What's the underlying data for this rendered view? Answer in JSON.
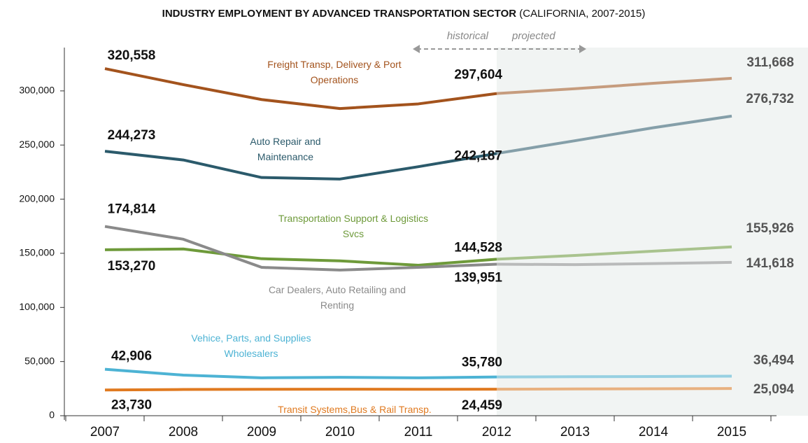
{
  "chart_data": {
    "type": "line",
    "title": "INDUSTRY EMPLOYMENT BY ADVANCED TRANSPORTATION SECTOR",
    "subtitle": "(CALIFORNIA, 2007-2015)",
    "annotations": [
      "historical",
      "projected"
    ],
    "projection_start": "2012",
    "categories": [
      "2007",
      "2008",
      "2009",
      "2010",
      "2011",
      "2012",
      "2013",
      "2014",
      "2015"
    ],
    "ylim": [
      0,
      340000
    ],
    "yticks": [
      0,
      {
        "value": 50000,
        "label": "50,000"
      },
      {
        "value": 100000,
        "label": "100,000"
      },
      {
        "value": 150000,
        "label": "150,000"
      },
      {
        "value": 200000,
        "label": "200,000"
      },
      {
        "value": 250000,
        "label": "250,000"
      },
      {
        "value": 300000,
        "label": "300,000"
      }
    ],
    "series": [
      {
        "name": "Freight Transp, Delivery & Port Operations",
        "color": "#a3531d",
        "values": [
          320558,
          305800,
          292000,
          283700,
          288000,
          297604,
          302000,
          307000,
          311668
        ],
        "value_labels": [
          "320,558",
          null,
          null,
          null,
          null,
          "297,604",
          null,
          null,
          "311,668"
        ]
      },
      {
        "name": "Auto Repair and Maintenance",
        "color": "#2b5a6b",
        "values": [
          244273,
          236200,
          220000,
          218600,
          230000,
          242187,
          254000,
          266000,
          276732
        ],
        "value_labels": [
          "244,273",
          null,
          null,
          null,
          null,
          "242,187",
          null,
          null,
          "276,732"
        ]
      },
      {
        "name": "Transportation Support & Logistics Svcs",
        "color": "#6e9a3a",
        "values": [
          153270,
          154000,
          145000,
          143000,
          139000,
          144528,
          148000,
          152000,
          155926
        ],
        "value_labels": [
          "153,270",
          null,
          null,
          null,
          null,
          "144,528",
          null,
          null,
          "155,926"
        ]
      },
      {
        "name": "Car Dealers, Auto Retailing and Renting",
        "color": "#8a8a8a",
        "values": [
          174814,
          163000,
          137000,
          134500,
          137000,
          139951,
          139500,
          140500,
          141618
        ],
        "value_labels": [
          "174,814",
          null,
          null,
          null,
          null,
          "139,951",
          null,
          null,
          "141,618"
        ]
      },
      {
        "name": "Vehice, Parts, and Supplies Wholesalers",
        "color": "#4db3d4",
        "values": [
          42906,
          37500,
          35000,
          35500,
          35000,
          35780,
          36000,
          36200,
          36494
        ],
        "value_labels": [
          "42,906",
          null,
          null,
          null,
          null,
          "35,780",
          null,
          null,
          "36,494"
        ]
      },
      {
        "name": "Transit Systems,Bus & Rail Transp.",
        "color": "#e07a20",
        "values": [
          23730,
          24200,
          24400,
          24500,
          24400,
          24459,
          24700,
          24900,
          25094
        ],
        "value_labels": [
          "23,730",
          null,
          null,
          null,
          null,
          "24,459",
          null,
          null,
          "25,094"
        ]
      }
    ]
  }
}
